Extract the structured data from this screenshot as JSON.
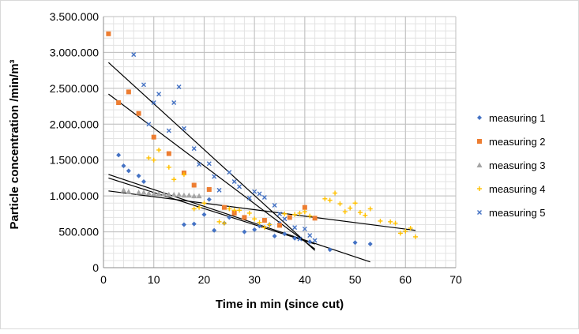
{
  "chart_data": {
    "type": "scatter",
    "title": "",
    "xlabel": "Time in min (since cut)",
    "ylabel": "Particle concentration /min/m³",
    "xlim": [
      0,
      70
    ],
    "ylim": [
      0,
      3500000
    ],
    "x_ticks": [
      0,
      10,
      20,
      30,
      40,
      50,
      60,
      70
    ],
    "x_tick_labels": [
      "0",
      "10",
      "20",
      "30",
      "40",
      "50",
      "60",
      "70"
    ],
    "y_ticks": [
      0,
      500000,
      1000000,
      1500000,
      2000000,
      2500000,
      3000000,
      3500000
    ],
    "y_tick_labels": [
      "0",
      "500.000",
      "1.000.000",
      "1.500.000",
      "2.000.000",
      "2.500.000",
      "3.000.000",
      "3.500.000"
    ],
    "grid": true,
    "legend_position": "right",
    "series": [
      {
        "name": "measuring 1",
        "marker": "diamond",
        "color": "#4472c4",
        "points": [
          [
            3,
            1570000
          ],
          [
            4,
            1420000
          ],
          [
            5,
            1350000
          ],
          [
            7,
            1280000
          ],
          [
            8,
            1200000
          ],
          [
            16,
            600000
          ],
          [
            18,
            610000
          ],
          [
            20,
            740000
          ],
          [
            21,
            950000
          ],
          [
            22,
            520000
          ],
          [
            24,
            620000
          ],
          [
            25,
            700000
          ],
          [
            28,
            500000
          ],
          [
            30,
            530000
          ],
          [
            31,
            580000
          ],
          [
            33,
            600000
          ],
          [
            34,
            440000
          ],
          [
            35,
            620000
          ],
          [
            36,
            470000
          ],
          [
            38,
            410000
          ],
          [
            41,
            360000
          ],
          [
            45,
            250000
          ],
          [
            50,
            350000
          ],
          [
            53,
            330000
          ]
        ]
      },
      {
        "name": "measuring 2",
        "marker": "square",
        "color": "#ed7d31",
        "points": [
          [
            1,
            3260000
          ],
          [
            3,
            2300000
          ],
          [
            5,
            2450000
          ],
          [
            7,
            2150000
          ],
          [
            10,
            1820000
          ],
          [
            13,
            1590000
          ],
          [
            16,
            1320000
          ],
          [
            18,
            1150000
          ],
          [
            21,
            1090000
          ],
          [
            24,
            840000
          ],
          [
            26,
            760000
          ],
          [
            28,
            700000
          ],
          [
            32,
            660000
          ],
          [
            35,
            590000
          ],
          [
            37,
            700000
          ],
          [
            40,
            840000
          ],
          [
            42,
            690000
          ]
        ]
      },
      {
        "name": "measuring 3",
        "marker": "triangle",
        "color": "#a5a5a5",
        "points": [
          [
            4,
            1080000
          ],
          [
            5,
            1060000
          ],
          [
            7,
            1050000
          ],
          [
            8,
            1050000
          ],
          [
            9,
            1040000
          ],
          [
            10,
            1030000
          ],
          [
            11,
            1030000
          ],
          [
            12,
            1030000
          ],
          [
            13,
            1020000
          ],
          [
            14,
            1020000
          ],
          [
            15,
            1020000
          ],
          [
            16,
            1010000
          ],
          [
            17,
            1010000
          ],
          [
            18,
            1000000
          ],
          [
            19,
            1000000
          ]
        ]
      },
      {
        "name": "measuring 4",
        "marker": "cross",
        "color": "#ffc000",
        "points": [
          [
            9,
            1530000
          ],
          [
            10,
            1500000
          ],
          [
            11,
            1640000
          ],
          [
            13,
            1400000
          ],
          [
            14,
            1230000
          ],
          [
            16,
            1300000
          ],
          [
            18,
            820000
          ],
          [
            19,
            840000
          ],
          [
            20,
            900000
          ],
          [
            23,
            640000
          ],
          [
            24,
            620000
          ],
          [
            25,
            820000
          ],
          [
            26,
            800000
          ],
          [
            27,
            800000
          ],
          [
            29,
            760000
          ],
          [
            30,
            680000
          ],
          [
            31,
            630000
          ],
          [
            32,
            560000
          ],
          [
            33,
            600000
          ],
          [
            36,
            750000
          ],
          [
            38,
            740000
          ],
          [
            39,
            760000
          ],
          [
            40,
            780000
          ],
          [
            41,
            720000
          ],
          [
            44,
            960000
          ],
          [
            45,
            940000
          ],
          [
            46,
            1040000
          ],
          [
            47,
            890000
          ],
          [
            48,
            780000
          ],
          [
            49,
            830000
          ],
          [
            50,
            900000
          ],
          [
            51,
            770000
          ],
          [
            52,
            730000
          ],
          [
            53,
            820000
          ],
          [
            55,
            650000
          ],
          [
            57,
            640000
          ],
          [
            58,
            620000
          ],
          [
            59,
            480000
          ],
          [
            60,
            510000
          ],
          [
            61,
            550000
          ],
          [
            62,
            430000
          ]
        ]
      },
      {
        "name": "measuring 5",
        "marker": "x",
        "color": "#4472c4",
        "points": [
          [
            6,
            2970000
          ],
          [
            8,
            2550000
          ],
          [
            10,
            2300000
          ],
          [
            11,
            2420000
          ],
          [
            14,
            2300000
          ],
          [
            15,
            2520000
          ],
          [
            9,
            2000000
          ],
          [
            13,
            1910000
          ],
          [
            16,
            1940000
          ],
          [
            18,
            1660000
          ],
          [
            19,
            1440000
          ],
          [
            21,
            1450000
          ],
          [
            22,
            1270000
          ],
          [
            23,
            1080000
          ],
          [
            25,
            1330000
          ],
          [
            26,
            1200000
          ],
          [
            27,
            1130000
          ],
          [
            29,
            970000
          ],
          [
            30,
            1060000
          ],
          [
            31,
            1030000
          ],
          [
            32,
            980000
          ],
          [
            34,
            870000
          ],
          [
            35,
            750000
          ],
          [
            36,
            680000
          ],
          [
            38,
            560000
          ],
          [
            39,
            400000
          ],
          [
            40,
            540000
          ],
          [
            41,
            450000
          ],
          [
            42,
            380000
          ]
        ]
      }
    ],
    "trendlines": [
      {
        "from": [
          1,
          2860000
        ],
        "to": [
          42,
          240000
        ]
      },
      {
        "from": [
          1,
          2420000
        ],
        "to": [
          42,
          260000
        ]
      },
      {
        "from": [
          1,
          1300000
        ],
        "to": [
          53,
          80000
        ]
      },
      {
        "from": [
          1,
          1250000
        ],
        "to": [
          42,
          330000
        ]
      },
      {
        "from": [
          1,
          1070000
        ],
        "to": [
          62,
          520000
        ]
      }
    ]
  }
}
